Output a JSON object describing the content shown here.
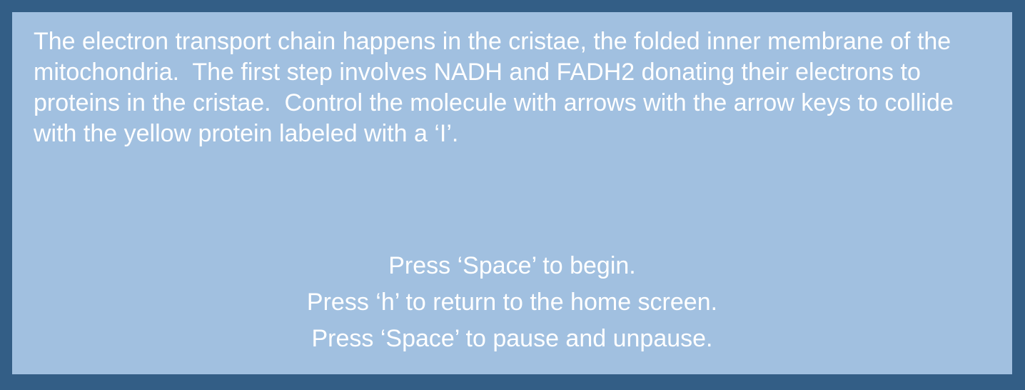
{
  "screen": {
    "intro_text": "The electron transport chain happens in the cristae, the folded inner membrane of the mitochondria.  The first step involves NADH and FADH2 donating their electrons to proteins in the cristae.  Control the molecule with arrows with the arrow keys to collide with the yellow protein labeled with a ‘I’.",
    "instructions": [
      "Press ‘Space’ to begin.",
      "Press ‘h’ to return to the home screen.",
      "Press ‘Space’ to pause and unpause."
    ]
  },
  "colors": {
    "border": "#335e86",
    "panel": "#a1c0e0",
    "text": "#ffffff"
  }
}
